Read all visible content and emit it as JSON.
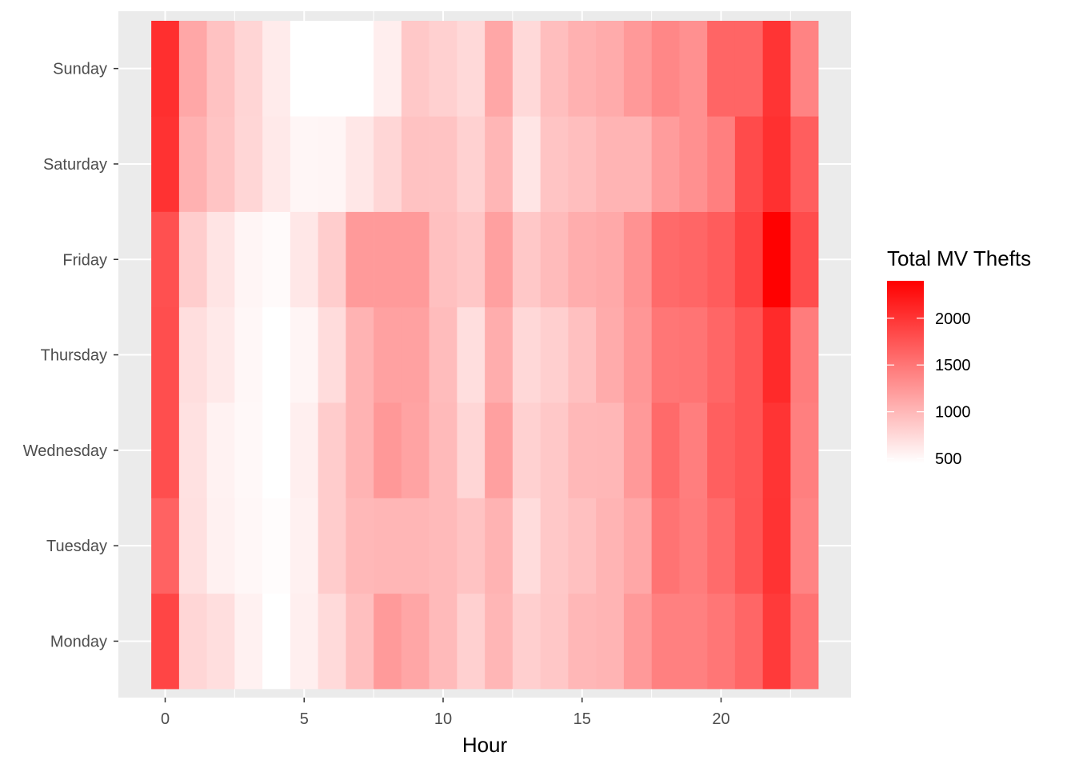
{
  "chart_data": {
    "type": "heatmap",
    "title": "",
    "xlabel": "Hour",
    "ylabel": "",
    "x": [
      0,
      1,
      2,
      3,
      4,
      5,
      6,
      7,
      8,
      9,
      10,
      11,
      12,
      13,
      14,
      15,
      16,
      17,
      18,
      19,
      20,
      21,
      22,
      23
    ],
    "x_ticks": [
      0,
      5,
      10,
      15,
      20
    ],
    "x_tick_labels": [
      "0",
      "5",
      "10",
      "15",
      "20"
    ],
    "y": [
      "Monday",
      "Tuesday",
      "Wednesday",
      "Thursday",
      "Friday",
      "Saturday",
      "Sunday"
    ],
    "xlim": [
      -0.5,
      23.5
    ],
    "grid": true,
    "fill_scale": {
      "low_color": "#ffffff",
      "high_color": "#ff0000",
      "min": 450,
      "max": 2400
    },
    "legend": {
      "title": "Total MV Thefts",
      "placement": "right",
      "breaks": [
        500,
        1000,
        1500,
        2000
      ],
      "break_labels": [
        "500",
        "1000",
        "1500",
        "2000"
      ]
    },
    "values": [
      [
        1870,
        760,
        700,
        560,
        450,
        570,
        730,
        940,
        1220,
        1130,
        980,
        810,
        1010,
        820,
        880,
        1000,
        1020,
        1230,
        1420,
        1420,
        1500,
        1620,
        1960,
        1530
      ],
      [
        1650,
        690,
        560,
        510,
        470,
        560,
        840,
        990,
        1010,
        1010,
        980,
        910,
        1030,
        720,
        870,
        930,
        1020,
        1120,
        1520,
        1450,
        1580,
        1760,
        2010,
        1400
      ],
      [
        1800,
        680,
        550,
        500,
        450,
        570,
        840,
        1030,
        1240,
        1150,
        980,
        760,
        1180,
        800,
        870,
        990,
        1000,
        1230,
        1590,
        1440,
        1670,
        1750,
        2000,
        1430
      ],
      [
        1800,
        700,
        620,
        510,
        450,
        530,
        720,
        1030,
        1170,
        1170,
        960,
        700,
        1080,
        750,
        820,
        930,
        1090,
        1250,
        1500,
        1510,
        1620,
        1750,
        2080,
        1450
      ],
      [
        1790,
        830,
        660,
        530,
        490,
        630,
        830,
        1220,
        1220,
        1220,
        930,
        880,
        1180,
        870,
        970,
        1080,
        1110,
        1280,
        1590,
        1620,
        1700,
        1900,
        2390,
        1820
      ],
      [
        2020,
        1050,
        900,
        760,
        620,
        520,
        530,
        630,
        760,
        920,
        910,
        800,
        1010,
        650,
        900,
        950,
        1020,
        1020,
        1210,
        1300,
        1430,
        1830,
        2030,
        1680
      ],
      [
        2040,
        1120,
        920,
        770,
        600,
        450,
        450,
        450,
        580,
        870,
        810,
        740,
        1120,
        740,
        950,
        1050,
        1090,
        1230,
        1370,
        1300,
        1630,
        1630,
        2000,
        1400
      ]
    ]
  }
}
